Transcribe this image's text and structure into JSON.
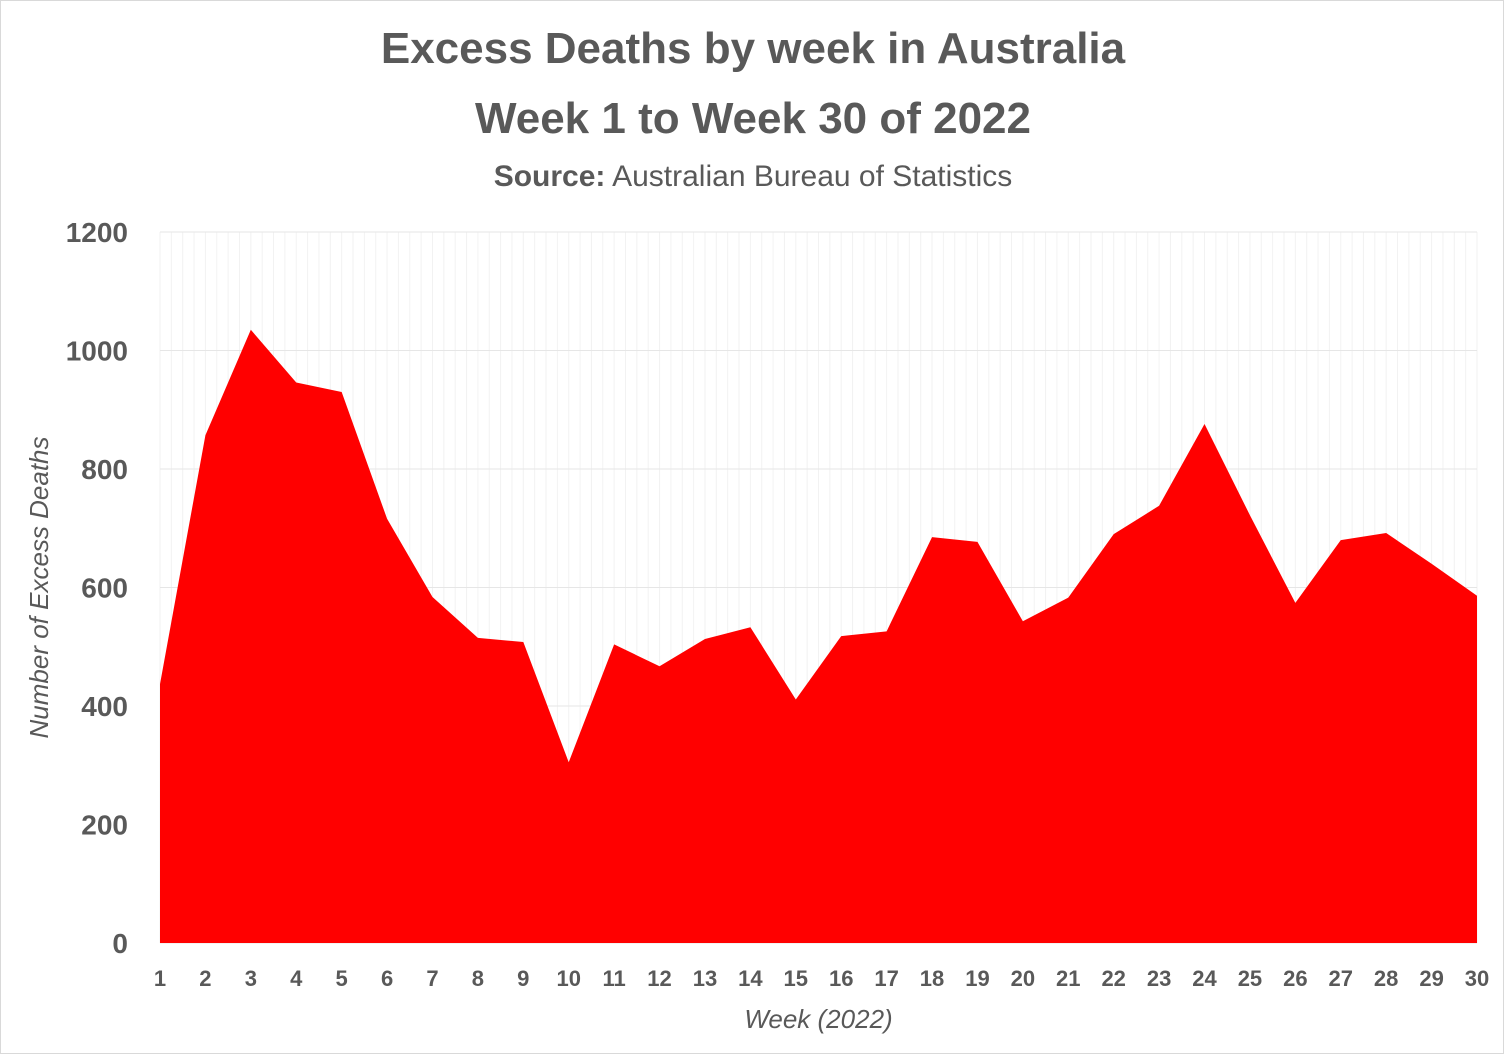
{
  "title_line1": "Excess Deaths by week in Australia",
  "title_line2": "Week 1 to Week 30 of 2022",
  "source_label": "Source:",
  "source_text": "Australian Bureau of Statistics",
  "chart_data": {
    "type": "area",
    "title": "Excess Deaths by week in Australia Week 1 to Week 30 of 2022",
    "subtitle": "Source: Australian Bureau of Statistics",
    "xlabel": "Week (2022)",
    "ylabel": "Number of Excess Deaths",
    "x": [
      1,
      2,
      3,
      4,
      5,
      6,
      7,
      8,
      9,
      10,
      11,
      12,
      13,
      14,
      15,
      16,
      17,
      18,
      19,
      20,
      21,
      22,
      23,
      24,
      25,
      26,
      27,
      28,
      29,
      30
    ],
    "values": [
      437,
      857,
      1035,
      946,
      930,
      716,
      584,
      515,
      508,
      305,
      504,
      467,
      513,
      533,
      411,
      518,
      526,
      685,
      677,
      543,
      583,
      690,
      738,
      876,
      722,
      574,
      680,
      692,
      640,
      586
    ],
    "ylim": [
      0,
      1200
    ],
    "yticks": [
      0,
      200,
      400,
      600,
      800,
      1000,
      1200
    ],
    "grid": true,
    "fill_color": "#ff0000",
    "text_color": "#595959",
    "gridline_color": "#e6e6e6"
  }
}
